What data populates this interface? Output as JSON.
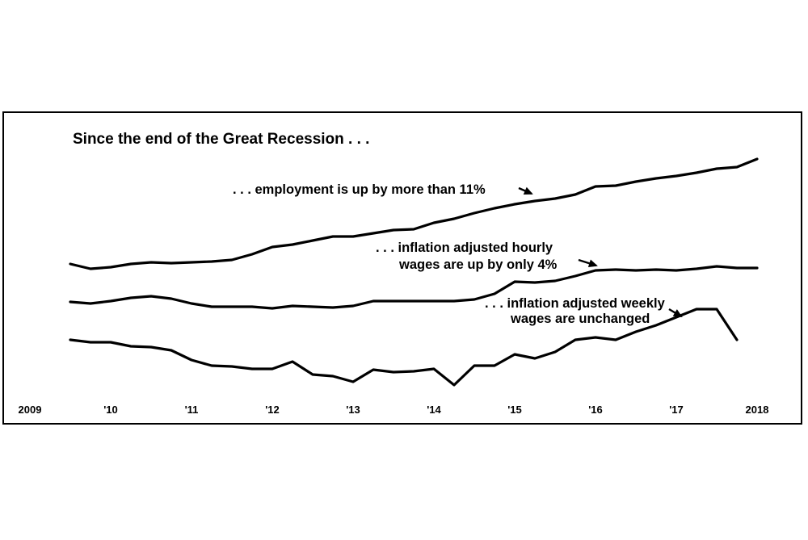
{
  "chart_data": {
    "type": "line",
    "title": "Since the end of the Great Recession . . .",
    "xlabel": "",
    "ylabel": "",
    "x_tick_labels": [
      "2009",
      "'10",
      "'11",
      "'12",
      "'13",
      "'14",
      "'15",
      "'16",
      "'17",
      "2018"
    ],
    "x_tick_values": [
      2009,
      2010,
      2011,
      2012,
      2013,
      2014,
      2015,
      2016,
      2017,
      2018
    ],
    "xlim": [
      2009,
      2018.5
    ],
    "grid": false,
    "legend": "none",
    "series": [
      {
        "key": "employment",
        "annotation_lines": [
          ". . . employment is up by more than 11%"
        ],
        "x": [
          2009.5,
          2009.75,
          2010.0,
          2010.25,
          2010.5,
          2010.75,
          2011.0,
          2011.25,
          2011.5,
          2011.75,
          2012.0,
          2012.25,
          2012.5,
          2012.75,
          2013.0,
          2013.25,
          2013.5,
          2013.75,
          2014.0,
          2014.25,
          2014.5,
          2014.75,
          2015.0,
          2015.25,
          2015.5,
          2015.75,
          2016.0,
          2016.25,
          2016.5,
          2016.75,
          2017.0,
          2017.25,
          2017.5,
          2017.75,
          2018.0
        ],
        "y": [
          0.0,
          -0.6,
          -0.4,
          0.0,
          0.2,
          0.1,
          0.2,
          0.3,
          0.5,
          1.2,
          2.1,
          2.4,
          2.9,
          3.4,
          3.4,
          3.8,
          4.2,
          4.3,
          5.1,
          5.6,
          6.3,
          6.9,
          7.4,
          7.8,
          8.1,
          8.6,
          9.6,
          9.7,
          10.2,
          10.6,
          10.9,
          11.3,
          11.8,
          12.0,
          13.0
        ]
      },
      {
        "key": "hourly",
        "annotation_lines": [
          ". . . inflation adjusted hourly",
          "wages are up by only 4%"
        ],
        "x": [
          2009.5,
          2009.75,
          2010.0,
          2010.25,
          2010.5,
          2010.75,
          2011.0,
          2011.25,
          2011.5,
          2011.75,
          2012.0,
          2012.25,
          2012.5,
          2012.75,
          2013.0,
          2013.25,
          2013.5,
          2013.75,
          2014.0,
          2014.25,
          2014.5,
          2014.75,
          2015.0,
          2015.25,
          2015.5,
          2015.75,
          2016.0,
          2016.25,
          2016.5,
          2016.75,
          2017.0,
          2017.25,
          2017.5,
          2017.75,
          2018.0
        ],
        "y": [
          0.0,
          -0.2,
          0.1,
          0.5,
          0.7,
          0.4,
          -0.2,
          -0.6,
          -0.6,
          -0.6,
          -0.8,
          -0.5,
          -0.6,
          -0.7,
          -0.5,
          0.1,
          0.1,
          0.1,
          0.1,
          0.1,
          0.3,
          1.0,
          2.5,
          2.4,
          2.6,
          3.2,
          3.9,
          4.0,
          3.9,
          4.0,
          3.9,
          4.1,
          4.4,
          4.2,
          4.2
        ]
      },
      {
        "key": "weekly",
        "annotation_lines": [
          ". . . inflation adjusted weekly",
          "wages are unchanged"
        ],
        "x": [
          2009.5,
          2009.75,
          2010.0,
          2010.25,
          2010.5,
          2010.75,
          2011.0,
          2011.25,
          2011.5,
          2011.75,
          2012.0,
          2012.25,
          2012.5,
          2012.75,
          2013.0,
          2013.25,
          2013.5,
          2013.75,
          2014.0,
          2014.25,
          2014.5,
          2014.75,
          2015.0,
          2015.25,
          2015.5,
          2015.75,
          2016.0,
          2016.25,
          2016.5,
          2016.75,
          2017.0,
          2017.25,
          2017.5,
          2017.75
        ],
        "y": [
          0.0,
          -0.3,
          -0.3,
          -0.8,
          -0.9,
          -1.3,
          -2.5,
          -3.2,
          -3.3,
          -3.6,
          -3.6,
          -2.7,
          -4.3,
          -4.5,
          -5.2,
          -3.7,
          -4.0,
          -3.9,
          -3.6,
          -5.6,
          -3.2,
          -3.2,
          -1.8,
          -2.3,
          -1.5,
          0.0,
          0.3,
          0.0,
          1.0,
          1.8,
          2.8,
          3.8,
          3.8,
          0.0
        ]
      }
    ]
  }
}
